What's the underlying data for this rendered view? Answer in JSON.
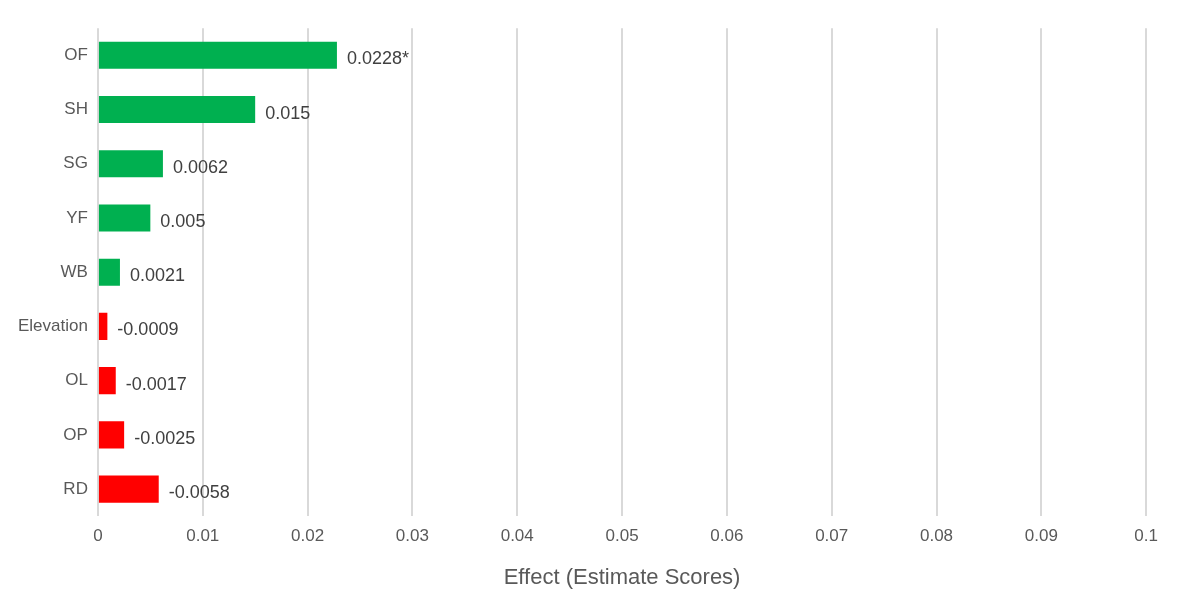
{
  "chart_data": {
    "type": "bar",
    "orientation": "horizontal",
    "categories": [
      "OF",
      "SH",
      "SG",
      "YF",
      "WB",
      "Elevation",
      "OL",
      "OP",
      "RD"
    ],
    "values": [
      0.0228,
      0.015,
      0.0062,
      0.005,
      0.0021,
      0.0009,
      0.0017,
      0.0025,
      0.0058
    ],
    "colors": [
      "#00b050",
      "#00b050",
      "#00b050",
      "#00b050",
      "#00b050",
      "#ff0000",
      "#ff0000",
      "#ff0000",
      "#ff0000"
    ],
    "annotations": [
      {
        "text": "0.0228*",
        "x": 0.0228,
        "y": "OF"
      },
      {
        "text": "0.015",
        "x": 0.015,
        "y": "SH"
      },
      {
        "text": "0.0062",
        "x": 0.0062,
        "y": "SG"
      },
      {
        "text": "0.005",
        "x": 0.005,
        "y": "YF"
      },
      {
        "text": "0.0021",
        "x": 0.0021,
        "y": "WB"
      },
      {
        "text": "-0.0009",
        "x": 0.0009,
        "y": "Elevation"
      },
      {
        "text": "-0.0017",
        "x": 0.0017,
        "y": "OL"
      },
      {
        "text": "-0.0025",
        "x": 0.0025,
        "y": "OP"
      },
      {
        "text": "-0.0058",
        "x": 0.0058,
        "y": "RD"
      }
    ],
    "xlabel": "Effect (Estimate Scores)",
    "xlim": [
      0,
      0.1
    ],
    "xticks": [
      0,
      0.01,
      0.02,
      0.03,
      0.04,
      0.05,
      0.06,
      0.07,
      0.08,
      0.09,
      0.1
    ],
    "grid": "x",
    "legend": false
  }
}
